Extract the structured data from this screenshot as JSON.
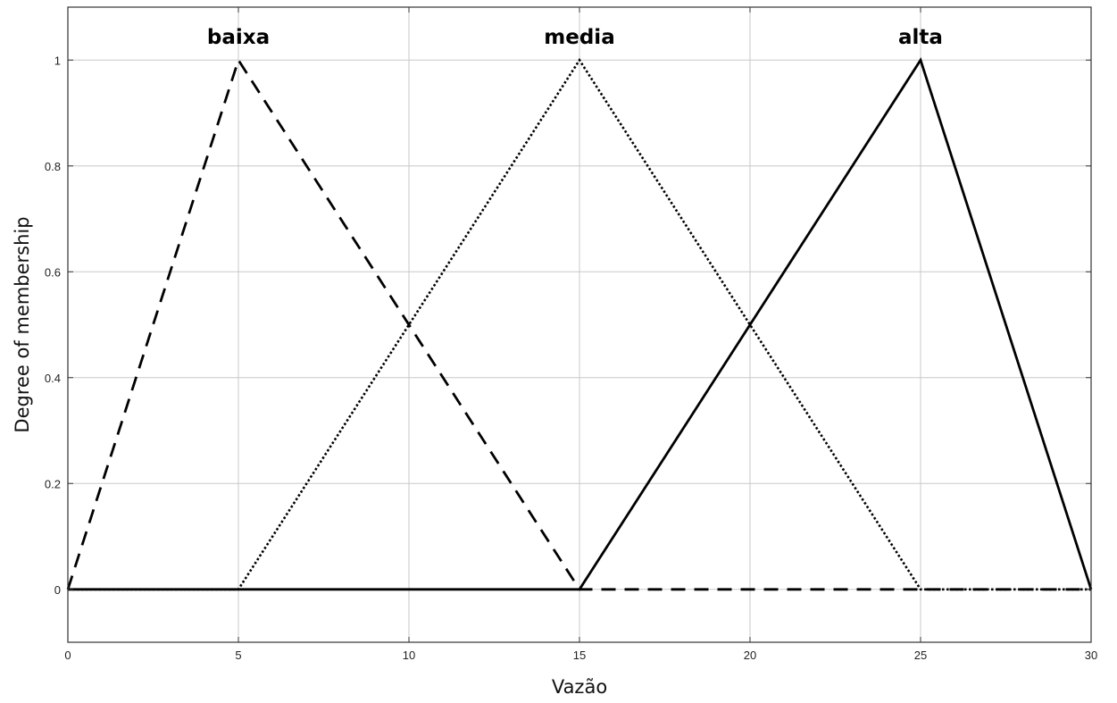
{
  "chart_data": {
    "type": "line",
    "xlabel": "Vazão",
    "ylabel": "Degree of membership",
    "xlim": [
      0,
      30
    ],
    "ylim": [
      -0.1,
      1.1
    ],
    "grid": true,
    "xticks": [
      0,
      5,
      10,
      15,
      20,
      25,
      30
    ],
    "yticks": [
      0,
      0.2,
      0.4,
      0.6,
      0.8,
      1
    ],
    "ytick_labels": [
      "0",
      "0.2",
      "0.4",
      "0.6",
      "0.8",
      "1"
    ],
    "series": [
      {
        "name": "baixa",
        "style": "dashed",
        "x": [
          0,
          5,
          15,
          30
        ],
        "y": [
          0,
          1,
          0,
          0
        ]
      },
      {
        "name": "media",
        "style": "dotted",
        "x": [
          0,
          5,
          15,
          25,
          30
        ],
        "y": [
          0,
          0,
          1,
          0,
          0
        ]
      },
      {
        "name": "alta",
        "style": "solid",
        "x": [
          0,
          15,
          25,
          30
        ],
        "y": [
          0,
          0,
          1,
          0
        ]
      }
    ],
    "colors": {
      "line": "#000000",
      "grid": "#c8c8c8",
      "axis": "#333333"
    }
  }
}
